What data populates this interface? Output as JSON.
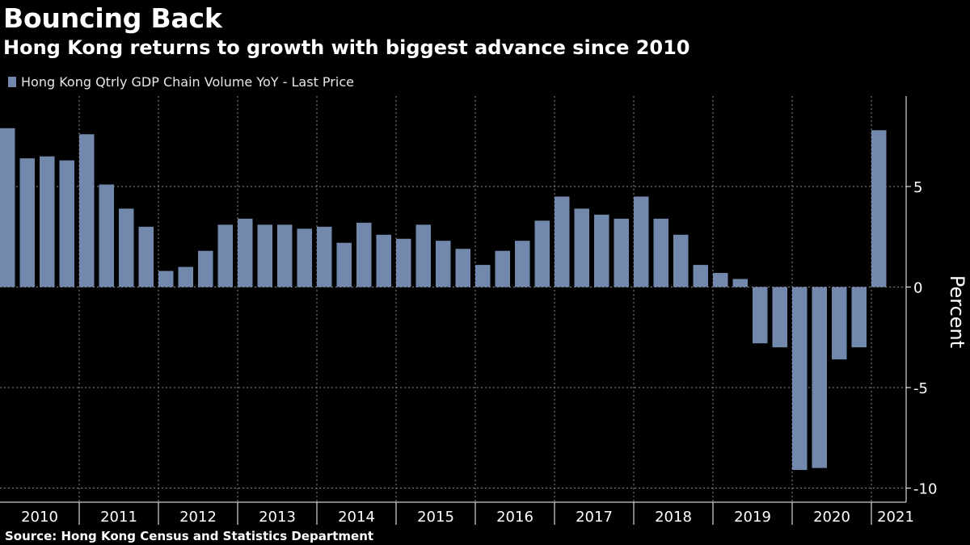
{
  "title": "Bouncing Back",
  "subtitle": "Hong Kong returns to growth with biggest advance since 2010",
  "source": "Source: Hong Kong Census and Statistics Department",
  "colors": {
    "background": "#000000",
    "bar": "#7289ad",
    "text": "#ffffff",
    "gridline": "#8a8a8a"
  },
  "chart_data": {
    "type": "bar",
    "title": "Bouncing Back",
    "subtitle": "Hong Kong returns to growth with biggest advance since 2010",
    "legend": {
      "position": "top-left",
      "entries": [
        "Hong Kong Qtrly GDP Chain Volume YoY - Last Price"
      ]
    },
    "xlabel": "",
    "ylabel": "Percent",
    "ylim": [
      -10.5,
      9.5
    ],
    "yticks": [
      5,
      0,
      -5,
      -10
    ],
    "ytick_labels": [
      "5",
      "0",
      "-5",
      "-10"
    ],
    "grid": "dotted",
    "year_labels": [
      {
        "label": "2010",
        "first_quarter": 0,
        "quarters": 4
      },
      {
        "label": "2011",
        "first_quarter": 4,
        "quarters": 4
      },
      {
        "label": "2012",
        "first_quarter": 8,
        "quarters": 4
      },
      {
        "label": "2013",
        "first_quarter": 12,
        "quarters": 4
      },
      {
        "label": "2014",
        "first_quarter": 16,
        "quarters": 4
      },
      {
        "label": "2015",
        "first_quarter": 20,
        "quarters": 4
      },
      {
        "label": "2016",
        "first_quarter": 24,
        "quarters": 4
      },
      {
        "label": "2017",
        "first_quarter": 28,
        "quarters": 4
      },
      {
        "label": "2018",
        "first_quarter": 32,
        "quarters": 4
      },
      {
        "label": "2019",
        "first_quarter": 36,
        "quarters": 4
      },
      {
        "label": "2020",
        "first_quarter": 40,
        "quarters": 4
      },
      {
        "label": "2021",
        "first_quarter": 44,
        "quarters": 1
      }
    ],
    "categories": [
      "2010 Q1",
      "2010 Q2",
      "2010 Q3",
      "2010 Q4",
      "2011 Q1",
      "2011 Q2",
      "2011 Q3",
      "2011 Q4",
      "2012 Q1",
      "2012 Q2",
      "2012 Q3",
      "2012 Q4",
      "2013 Q1",
      "2013 Q2",
      "2013 Q3",
      "2013 Q4",
      "2014 Q1",
      "2014 Q2",
      "2014 Q3",
      "2014 Q4",
      "2015 Q1",
      "2015 Q2",
      "2015 Q3",
      "2015 Q4",
      "2016 Q1",
      "2016 Q2",
      "2016 Q3",
      "2016 Q4",
      "2017 Q1",
      "2017 Q2",
      "2017 Q3",
      "2017 Q4",
      "2018 Q1",
      "2018 Q2",
      "2018 Q3",
      "2018 Q4",
      "2019 Q1",
      "2019 Q2",
      "2019 Q3",
      "2019 Q4",
      "2020 Q1",
      "2020 Q2",
      "2020 Q3",
      "2020 Q4",
      "2021 Q1"
    ],
    "series": [
      {
        "name": "Hong Kong Qtrly GDP Chain Volume YoY - Last Price",
        "values": [
          7.9,
          6.4,
          6.5,
          6.3,
          7.6,
          5.1,
          3.9,
          3.0,
          0.8,
          1.0,
          1.8,
          3.1,
          3.4,
          3.1,
          3.1,
          2.9,
          3.0,
          2.2,
          3.2,
          2.6,
          2.4,
          3.1,
          2.3,
          1.9,
          1.1,
          1.8,
          2.3,
          3.3,
          4.5,
          3.9,
          3.6,
          3.4,
          4.5,
          3.4,
          2.6,
          1.1,
          0.7,
          0.4,
          -2.8,
          -3.0,
          -9.1,
          -9.0,
          -3.6,
          -3.0,
          7.8
        ]
      }
    ]
  }
}
